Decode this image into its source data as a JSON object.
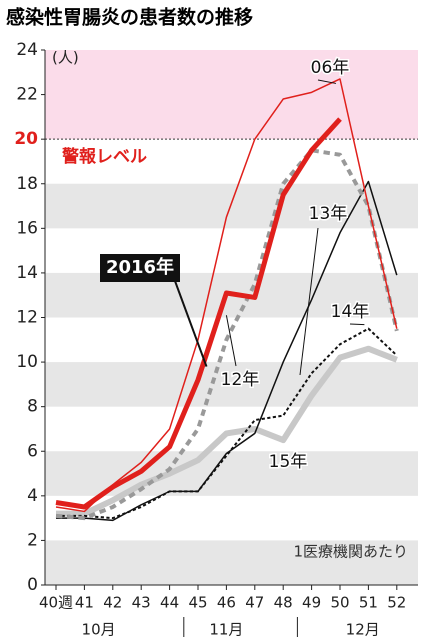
{
  "chart_data": {
    "type": "line",
    "title": "感染性胃腸炎の患者数の推移",
    "unit": "(人)",
    "note": "1医療機関あたり",
    "alert_level": 20,
    "alert_label": "警報レベル",
    "categories": [
      "40週",
      "41",
      "42",
      "43",
      "44",
      "45",
      "46",
      "47",
      "48",
      "49",
      "50",
      "51",
      "52"
    ],
    "months": [
      "10月",
      "11月",
      "12月"
    ],
    "ylim": [
      0,
      24
    ],
    "yticks": [
      0,
      2,
      4,
      6,
      8,
      10,
      12,
      14,
      16,
      18,
      20,
      22,
      24
    ],
    "series": [
      {
        "name": "15年",
        "color": "#c8c8c8",
        "width": 6,
        "dashed": false,
        "values": [
          3.2,
          3.2,
          3.8,
          4.5,
          5.0,
          5.6,
          6.8,
          7.0,
          6.5,
          8.5,
          10.2,
          10.6,
          10.1
        ]
      },
      {
        "name": "14年",
        "color": "#111111",
        "width": 2,
        "dashed": true,
        "values": [
          3.1,
          3.1,
          3.0,
          3.5,
          4.2,
          4.2,
          5.8,
          7.4,
          7.6,
          9.5,
          10.8,
          11.5,
          10.3
        ]
      },
      {
        "name": "13年",
        "color": "#111111",
        "width": 1.5,
        "dashed": false,
        "values": [
          3.0,
          3.0,
          2.9,
          3.6,
          4.2,
          4.2,
          5.9,
          6.8,
          10.0,
          12.8,
          15.8,
          18.1,
          13.9
        ]
      },
      {
        "name": "12年",
        "color": "#999999",
        "width": 4,
        "dashed": true,
        "values": [
          3.1,
          3.0,
          3.5,
          4.3,
          5.2,
          7.0,
          11.0,
          13.5,
          18.0,
          19.5,
          19.3,
          17.0,
          11.4
        ]
      },
      {
        "name": "06年",
        "color": "#e0201c",
        "width": 1.5,
        "dashed": false,
        "values": [
          3.5,
          3.3,
          4.5,
          5.5,
          7.0,
          11.0,
          16.5,
          20.0,
          21.8,
          22.1,
          22.7,
          17.0,
          11.5
        ]
      },
      {
        "name": "2016年",
        "color": "#e0201c",
        "width": 5,
        "dashed": false,
        "values": [
          3.7,
          3.5,
          4.4,
          5.1,
          6.2,
          9.2,
          13.1,
          12.9,
          17.5,
          19.5,
          20.9,
          null,
          null
        ]
      }
    ]
  }
}
